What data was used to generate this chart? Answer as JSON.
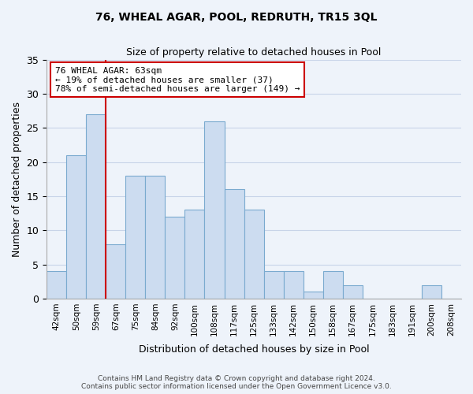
{
  "title": "76, WHEAL AGAR, POOL, REDRUTH, TR15 3QL",
  "subtitle": "Size of property relative to detached houses in Pool",
  "xlabel": "Distribution of detached houses by size in Pool",
  "ylabel": "Number of detached properties",
  "footer_line1": "Contains HM Land Registry data © Crown copyright and database right 2024.",
  "footer_line2": "Contains public sector information licensed under the Open Government Licence v3.0.",
  "bin_labels": [
    "42sqm",
    "50sqm",
    "59sqm",
    "67sqm",
    "75sqm",
    "84sqm",
    "92sqm",
    "100sqm",
    "108sqm",
    "117sqm",
    "125sqm",
    "133sqm",
    "142sqm",
    "150sqm",
    "158sqm",
    "167sqm",
    "175sqm",
    "183sqm",
    "191sqm",
    "200sqm",
    "208sqm"
  ],
  "bar_values": [
    4,
    21,
    27,
    8,
    18,
    18,
    12,
    13,
    26,
    16,
    13,
    4,
    4,
    1,
    4,
    2,
    0,
    0,
    0,
    2,
    0
  ],
  "bar_color": "#ccdcf0",
  "bar_edge_color": "#7aaacf",
  "vline_color": "#cc0000",
  "annotation_title": "76 WHEAL AGAR: 63sqm",
  "annotation_line1": "← 19% of detached houses are smaller (37)",
  "annotation_line2": "78% of semi-detached houses are larger (149) →",
  "annotation_box_color": "#ffffff",
  "annotation_box_edge": "#cc0000",
  "ylim": [
    0,
    35
  ],
  "yticks": [
    0,
    5,
    10,
    15,
    20,
    25,
    30,
    35
  ],
  "background_color": "#eef3fa",
  "grid_color": "#c8d4e8"
}
